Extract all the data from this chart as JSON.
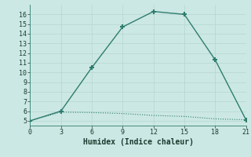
{
  "xlabel": "Humidex (Indice chaleur)",
  "line1_x": [
    0,
    3,
    6,
    9,
    12,
    15,
    18,
    21
  ],
  "line1_y": [
    5,
    6,
    10.5,
    14.7,
    16.3,
    16.0,
    11.3,
    5.1
  ],
  "line2_x": [
    0,
    3,
    6,
    9,
    12,
    15,
    18,
    21
  ],
  "line2_y": [
    5.0,
    5.9,
    5.85,
    5.75,
    5.55,
    5.45,
    5.2,
    5.1
  ],
  "line_color": "#2e7d6e",
  "bg_color": "#cce8e4",
  "grid_color": "#b8d8d4",
  "xlim": [
    0,
    21
  ],
  "ylim": [
    4.5,
    17
  ],
  "xticks": [
    0,
    3,
    6,
    9,
    12,
    15,
    18,
    21
  ],
  "yticks": [
    5,
    6,
    7,
    8,
    9,
    10,
    11,
    12,
    13,
    14,
    15,
    16
  ],
  "marker": "+",
  "markersize": 5,
  "markeredgewidth": 1.5
}
